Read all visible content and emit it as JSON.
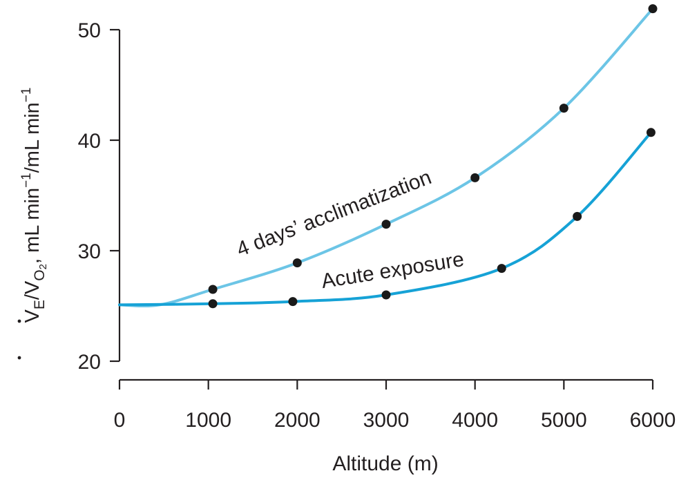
{
  "chart_data": {
    "type": "line",
    "title": "",
    "xlabel": "Altitude (m)",
    "ylabel": {
      "v1": "V",
      "sub1": "E",
      "slash": "/",
      "v2": "V",
      "sub2": "O",
      "sub2n": "2",
      "rest1": ", mL min",
      "exp1": "−1",
      "rest2": "/mL min",
      "exp2": "−1"
    },
    "xlim": [
      0,
      6000
    ],
    "ylim": [
      20,
      50
    ],
    "x_ticks": [
      "0",
      "1000",
      "2000",
      "3000",
      "4000",
      "5000",
      "6000"
    ],
    "y_ticks": [
      "20",
      "30",
      "40",
      "50"
    ],
    "grid": false,
    "series": [
      {
        "name": "4 days’ acclimatization",
        "color": "#6cc5e6",
        "curve_start": {
          "x": 0,
          "y": 25.1
        },
        "points": [
          {
            "x": 1050,
            "y": 26.5
          },
          {
            "x": 2000,
            "y": 28.9
          },
          {
            "x": 3000,
            "y": 32.4
          },
          {
            "x": 4000,
            "y": 36.6
          },
          {
            "x": 5000,
            "y": 42.9
          },
          {
            "x": 6000,
            "y": 51.9
          }
        ]
      },
      {
        "name": "Acute exposure",
        "color": "#16a2d6",
        "curve_start": {
          "x": 0,
          "y": 25.1
        },
        "points": [
          {
            "x": 1050,
            "y": 25.2
          },
          {
            "x": 1950,
            "y": 25.4
          },
          {
            "x": 3000,
            "y": 26.0
          },
          {
            "x": 4300,
            "y": 28.4
          },
          {
            "x": 5150,
            "y": 33.1
          },
          {
            "x": 5980,
            "y": 40.7
          }
        ]
      }
    ],
    "point_color": "#1a1a1a"
  }
}
